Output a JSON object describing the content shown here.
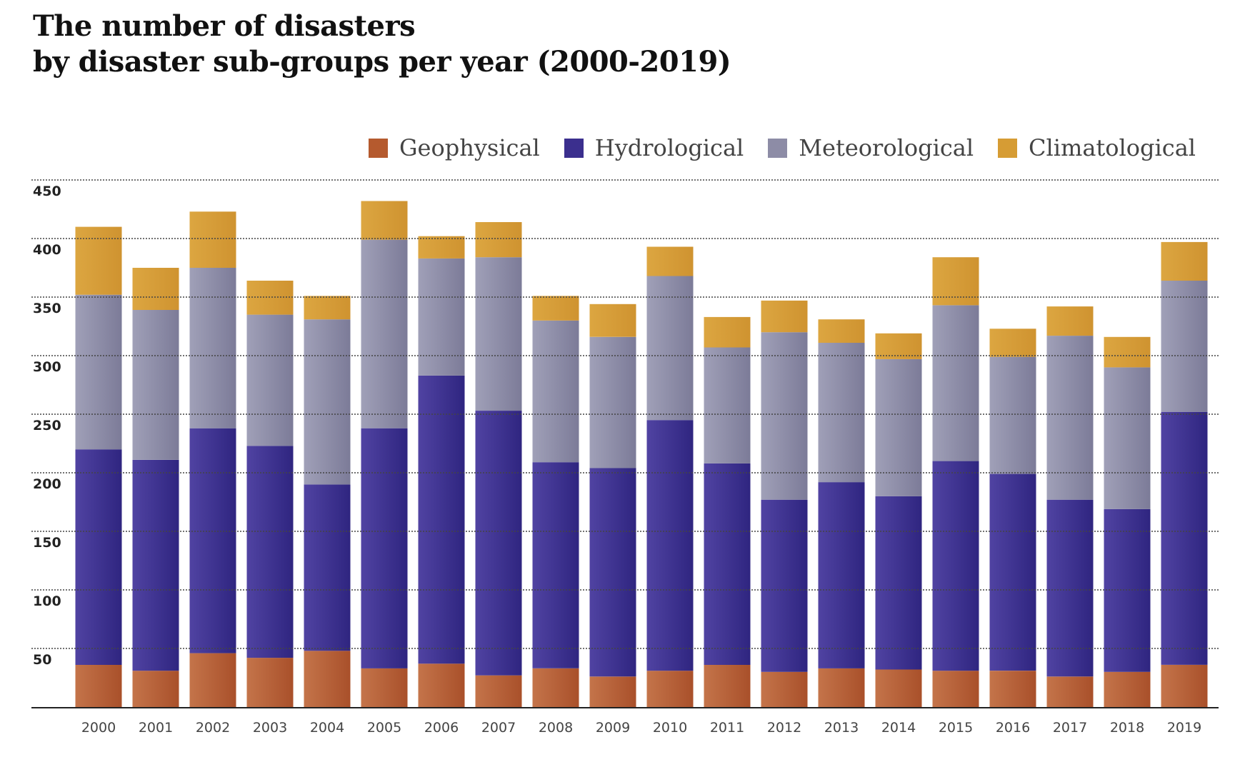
{
  "chart_data": {
    "type": "bar",
    "stacked": true,
    "title": [
      "The number of disasters",
      "by disaster sub-groups per year (2000-2019)"
    ],
    "xlabel": "",
    "ylabel": "",
    "ylim": [
      0,
      450
    ],
    "yticks": [
      50,
      100,
      150,
      200,
      250,
      300,
      350,
      400,
      450
    ],
    "grid": true,
    "legend_position": "top-right",
    "categories": [
      "2000",
      "2001",
      "2002",
      "2003",
      "2004",
      "2005",
      "2006",
      "2007",
      "2008",
      "2009",
      "2010",
      "2011",
      "2012",
      "2013",
      "2014",
      "2015",
      "2016",
      "2017",
      "2018",
      "2019"
    ],
    "series": [
      {
        "name": "Geophysical",
        "color": "#b55a2e",
        "values": [
          36,
          31,
          46,
          42,
          48,
          33,
          37,
          27,
          33,
          26,
          31,
          36,
          30,
          33,
          32,
          31,
          31,
          26,
          30,
          36
        ]
      },
      {
        "name": "Hydrological",
        "color": "#3b2f8e",
        "values": [
          184,
          180,
          192,
          181,
          142,
          205,
          246,
          226,
          176,
          178,
          214,
          172,
          147,
          159,
          148,
          179,
          168,
          151,
          139,
          216
        ]
      },
      {
        "name": "Meteorological",
        "color": "#8d8ca6",
        "values": [
          132,
          128,
          137,
          112,
          141,
          161,
          100,
          131,
          121,
          112,
          123,
          99,
          143,
          119,
          117,
          133,
          100,
          140,
          121,
          112
        ]
      },
      {
        "name": "Climatological",
        "color": "#d69c34",
        "values": [
          58,
          36,
          48,
          29,
          20,
          33,
          19,
          30,
          21,
          28,
          25,
          26,
          27,
          20,
          22,
          41,
          24,
          25,
          26,
          33
        ]
      }
    ]
  }
}
